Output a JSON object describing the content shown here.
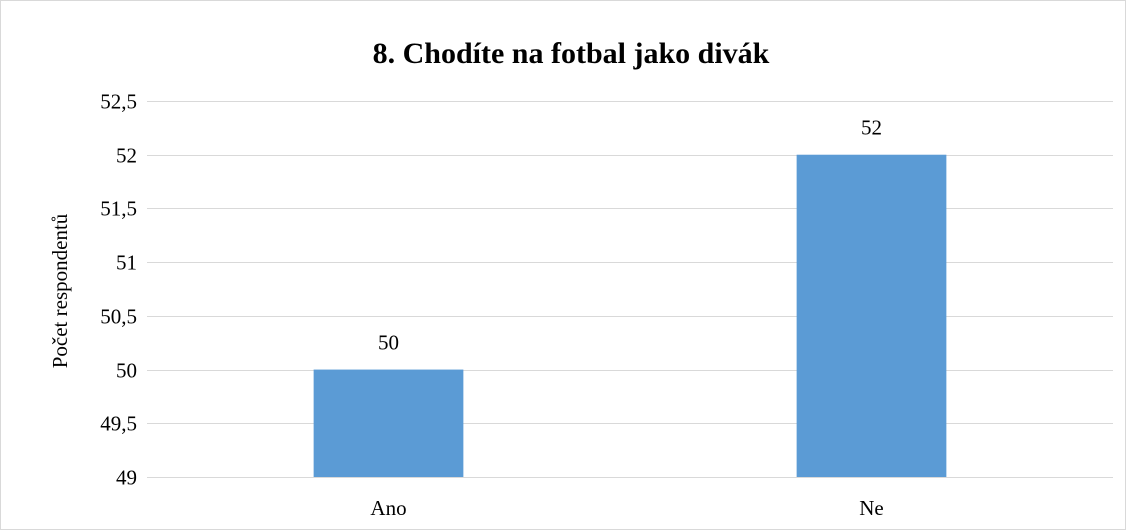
{
  "chart_data": {
    "type": "bar",
    "title": "8. Chodíte na fotbal jako divák",
    "xlabel": "",
    "ylabel": "Počet respondentů",
    "categories": [
      "Ano",
      "Ne"
    ],
    "values": [
      50,
      52
    ],
    "data_labels": [
      "50",
      "52"
    ],
    "ylim": [
      49,
      52.5
    ],
    "y_ticks": [
      49,
      49.5,
      50,
      50.5,
      51,
      51.5,
      52,
      52.5
    ],
    "y_tick_labels": [
      "49",
      "49,5",
      "50",
      "50,5",
      "51",
      "51,5",
      "52",
      "52,5"
    ],
    "grid": true,
    "legend": "none",
    "bar_color": "#5b9bd5",
    "grid_color": "#d9d9d9"
  }
}
